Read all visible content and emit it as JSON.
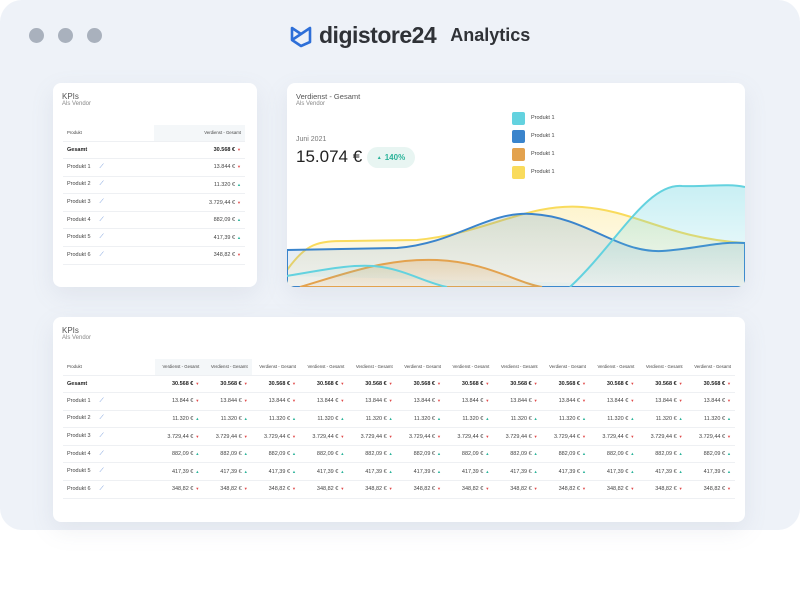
{
  "window": {
    "dots": [
      "",
      "",
      ""
    ]
  },
  "header": {
    "brand": "digistore24",
    "app": "Analytics"
  },
  "kpi_small": {
    "title": "KPIs",
    "subtitle": "Als Vendor",
    "col_product": "Produkt",
    "col_value": "Verdienst - Gesamt",
    "rows": [
      {
        "name": "Gesamt",
        "value": "30.568 €",
        "trend": "down"
      },
      {
        "name": "Produkt 1",
        "value": "13.844 €",
        "trend": "down"
      },
      {
        "name": "Produkt 2",
        "value": "11.320 €",
        "trend": "up"
      },
      {
        "name": "Produkt 3",
        "value": "3.729,44 €",
        "trend": "down"
      },
      {
        "name": "Produkt 4",
        "value": "882,09 €",
        "trend": "up"
      },
      {
        "name": "Produkt 5",
        "value": "417,39 €",
        "trend": "up"
      },
      {
        "name": "Produkt 6",
        "value": "348,82 €",
        "trend": "down"
      }
    ]
  },
  "chart_card": {
    "title": "Verdienst - Gesamt",
    "subtitle": "Als Vendor",
    "period": "Juni 2021",
    "value": "15.074 €",
    "change": "140%",
    "change_color": "#2bb39a",
    "legend": [
      {
        "name": "Produkt 1",
        "color": "#63d2df"
      },
      {
        "name": "Produkt 1",
        "color": "#3a84cc"
      },
      {
        "name": "Produkt 1",
        "color": "#e3a24e"
      },
      {
        "name": "Produkt 1",
        "color": "#f9db5c"
      }
    ]
  },
  "chart_data": {
    "type": "area",
    "series": [
      {
        "name": "Produkt 1",
        "color": "#63d2df"
      },
      {
        "name": "Produkt 1",
        "color": "#3a84cc"
      },
      {
        "name": "Produkt 1",
        "color": "#e3a24e"
      },
      {
        "name": "Produkt 1",
        "color": "#f9db5c"
      }
    ]
  },
  "kpi_large": {
    "title": "KPIs",
    "subtitle": "Als Vendor",
    "col_product": "Produkt",
    "col_value": "Verdienst - Gesamt",
    "columns": 12
  }
}
